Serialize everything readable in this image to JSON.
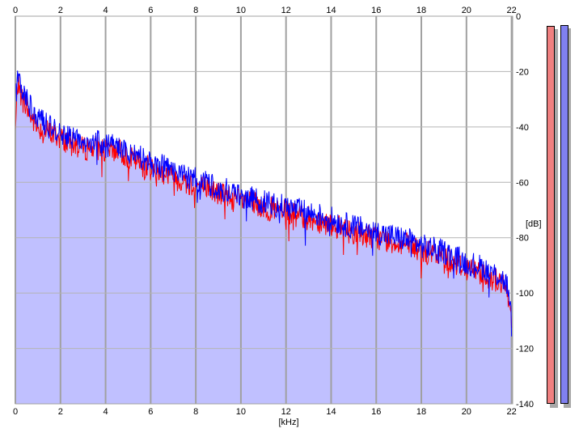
{
  "chart_data": {
    "type": "area",
    "title": "",
    "xlabel": "[kHz]",
    "ylabel": "[dB]",
    "xlim": [
      0,
      22.05
    ],
    "ylim": [
      -140,
      0
    ],
    "x_ticks": [
      0,
      2,
      4,
      6,
      8,
      10,
      12,
      14,
      16,
      18,
      20,
      22
    ],
    "y_ticks": [
      0,
      -20,
      -40,
      -60,
      -80,
      -100,
      -120,
      -140
    ],
    "grid": true,
    "fill_color": "#c0c0ff",
    "series": [
      {
        "color": "#ff0000",
        "x": [
          0,
          0.1,
          0.3,
          0.5,
          0.8,
          1.0,
          1.5,
          2.0,
          2.5,
          3.0,
          3.5,
          4.0,
          4.5,
          5.0,
          5.5,
          6.0,
          6.5,
          7.0,
          7.5,
          8.0,
          8.5,
          9.0,
          9.5,
          10.0,
          10.5,
          11.0,
          11.5,
          12.0,
          12.5,
          13.0,
          13.5,
          14.0,
          14.5,
          15.0,
          15.5,
          16.0,
          16.5,
          17.0,
          17.5,
          18.0,
          18.5,
          19.0,
          19.5,
          20.0,
          20.5,
          21.0,
          21.5,
          21.8,
          22.0
        ],
        "y": [
          -42,
          -24,
          -30,
          -33,
          -38,
          -40,
          -42,
          -44,
          -46,
          -48,
          -47,
          -49,
          -48,
          -51,
          -53,
          -55,
          -56,
          -58,
          -60,
          -61,
          -62,
          -64,
          -65,
          -67,
          -68,
          -69,
          -70,
          -71,
          -72,
          -73,
          -74,
          -75,
          -77,
          -78,
          -79,
          -80,
          -81,
          -82,
          -83,
          -85,
          -86,
          -87,
          -89,
          -91,
          -92,
          -94,
          -96,
          -100,
          -108
        ]
      },
      {
        "color": "#0000ff",
        "x": [
          0,
          0.1,
          0.3,
          0.5,
          0.8,
          1.0,
          1.5,
          2.0,
          2.5,
          3.0,
          3.5,
          4.0,
          4.5,
          5.0,
          5.5,
          6.0,
          6.5,
          7.0,
          7.5,
          8.0,
          8.5,
          9.0,
          9.5,
          10.0,
          10.5,
          11.0,
          11.5,
          12.0,
          12.5,
          13.0,
          13.5,
          14.0,
          14.5,
          15.0,
          15.5,
          16.0,
          16.5,
          17.0,
          17.5,
          18.0,
          18.5,
          19.0,
          19.5,
          20.0,
          20.5,
          21.0,
          21.5,
          21.8,
          22.0
        ],
        "y": [
          -30,
          -20,
          -27,
          -30,
          -35,
          -37,
          -40,
          -42,
          -44,
          -46,
          -45,
          -47,
          -46,
          -49,
          -51,
          -53,
          -54,
          -56,
          -58,
          -59,
          -60,
          -62,
          -63,
          -65,
          -66,
          -67,
          -68,
          -69,
          -70,
          -71,
          -72,
          -73,
          -75,
          -76,
          -77,
          -78,
          -79,
          -80,
          -81,
          -83,
          -84,
          -85,
          -87,
          -89,
          -90,
          -92,
          -94,
          -97,
          -110
        ]
      }
    ]
  },
  "meters": [
    {
      "color": "#f08080"
    },
    {
      "color": "#8080f0"
    }
  ]
}
